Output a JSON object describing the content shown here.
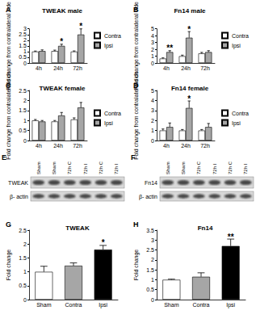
{
  "chart_data": [
    {
      "type": "bar",
      "panel": "A",
      "title": "TWEAK male",
      "y_label": "Fold change from contralateral side",
      "categories": [
        "4h",
        "24h",
        "72h"
      ],
      "series": [
        {
          "name": "Contra",
          "color": "#ffffff",
          "values": [
            1.0,
            1.05,
            1.0
          ],
          "errors": [
            0.05,
            0.08,
            0.06
          ]
        },
        {
          "name": "Ipsi",
          "color": "#a6a6a6",
          "values": [
            1.05,
            1.5,
            2.5
          ],
          "errors": [
            0.1,
            0.15,
            0.5
          ]
        }
      ],
      "annotations": [
        {
          "text": "*",
          "category": "24h",
          "series": "Ipsi"
        },
        {
          "text": "*",
          "category": "72h",
          "series": "Ipsi"
        }
      ],
      "ylim": [
        0,
        3
      ],
      "yticks": [
        0,
        0.5,
        1,
        1.5,
        2,
        2.5,
        3
      ],
      "grid": false,
      "legend": "right"
    },
    {
      "type": "bar",
      "panel": "B",
      "title": "Fn14 male",
      "y_label": "Fold change from contralateral side",
      "categories": [
        "4h",
        "24h",
        "72h"
      ],
      "series": [
        {
          "name": "Contra",
          "color": "#ffffff",
          "values": [
            0.65,
            1.0,
            1.4
          ],
          "errors": [
            0.1,
            0.15,
            0.15
          ]
        },
        {
          "name": "Ipsi",
          "color": "#a6a6a6",
          "values": [
            1.6,
            3.7,
            1.6
          ],
          "errors": [
            0.2,
            0.9,
            0.2
          ]
        }
      ],
      "annotations": [
        {
          "text": "**",
          "category": "4h",
          "series": "Ipsi"
        },
        {
          "text": "*",
          "category": "24h",
          "series": "Ipsi"
        }
      ],
      "ylim": [
        0,
        5
      ],
      "yticks": [
        0,
        1,
        2,
        3,
        4,
        5
      ],
      "grid": false,
      "legend": "right"
    },
    {
      "type": "bar",
      "panel": "C",
      "title": "TWEAK female",
      "y_label": "Fold change from contralateral side",
      "categories": [
        "4h",
        "24h",
        "72h"
      ],
      "series": [
        {
          "name": "Contra",
          "color": "#ffffff",
          "values": [
            1.0,
            0.95,
            1.05
          ],
          "errors": [
            0.05,
            0.05,
            0.08
          ]
        },
        {
          "name": "Ipsi",
          "color": "#a6a6a6",
          "values": [
            0.95,
            1.25,
            1.65
          ],
          "errors": [
            0.05,
            0.15,
            0.25
          ]
        }
      ],
      "ylim": [
        0,
        2.5
      ],
      "yticks": [
        0,
        0.5,
        1,
        1.5,
        2,
        2.5
      ],
      "grid": false,
      "legend": "right"
    },
    {
      "type": "bar",
      "panel": "D",
      "title": "Fn14 female",
      "y_label": "Fold change from contralateral side",
      "categories": [
        "4h",
        "24h",
        "72h"
      ],
      "series": [
        {
          "name": "Contra",
          "color": "#ffffff",
          "values": [
            1.0,
            1.0,
            1.0
          ],
          "errors": [
            0.15,
            0.1,
            0.1
          ]
        },
        {
          "name": "Ipsi",
          "color": "#a6a6a6",
          "values": [
            1.35,
            3.25,
            1.35
          ],
          "errors": [
            0.4,
            0.7,
            0.35
          ]
        }
      ],
      "annotations": [
        {
          "text": "*",
          "category": "24h",
          "series": "Ipsi"
        }
      ],
      "ylim": [
        0,
        5
      ],
      "yticks": [
        0,
        1,
        2,
        3,
        4,
        5
      ],
      "grid": false,
      "legend": "right"
    },
    {
      "type": "bar",
      "panel": "G",
      "title": "TWEAK",
      "y_label": "Fold change",
      "categories": [
        "Sham",
        "Contra",
        "Ipsi"
      ],
      "values": [
        1.0,
        1.22,
        1.8
      ],
      "errors": [
        0.2,
        0.1,
        0.15
      ],
      "colors": [
        "#ffffff",
        "#a6a6a6",
        "#000000"
      ],
      "annotations": [
        {
          "text": "*",
          "category": "Ipsi"
        }
      ],
      "ylim": [
        0,
        2.5
      ],
      "yticks": [
        0,
        0.5,
        1,
        1.5,
        2,
        2.5
      ],
      "grid": false
    },
    {
      "type": "bar",
      "panel": "H",
      "title": "Fn14",
      "y_label": "Fold change",
      "categories": [
        "Sham",
        "Contra",
        "Ipsi"
      ],
      "values": [
        1.0,
        1.15,
        2.7
      ],
      "errors": [
        0.03,
        0.2,
        0.35
      ],
      "colors": [
        "#ffffff",
        "#a6a6a6",
        "#000000"
      ],
      "annotations": [
        {
          "text": "**",
          "category": "Ipsi"
        }
      ],
      "ylim": [
        0,
        3.5
      ],
      "yticks": [
        0,
        0.5,
        1,
        1.5,
        2,
        2.5,
        3,
        3.5
      ],
      "grid": false
    }
  ],
  "blots": [
    {
      "panel": "E",
      "lanes": [
        "Sham",
        "Sham",
        "72h C",
        "72h I",
        "72h C",
        "72h I"
      ],
      "rows": [
        "TWEAK",
        "β- actin"
      ]
    },
    {
      "panel": "F",
      "lanes": [
        "Sham",
        "Sham",
        "72h C",
        "72h I",
        "72h C",
        "72h I"
      ],
      "rows": [
        "Fn14",
        "β- actin"
      ]
    }
  ]
}
